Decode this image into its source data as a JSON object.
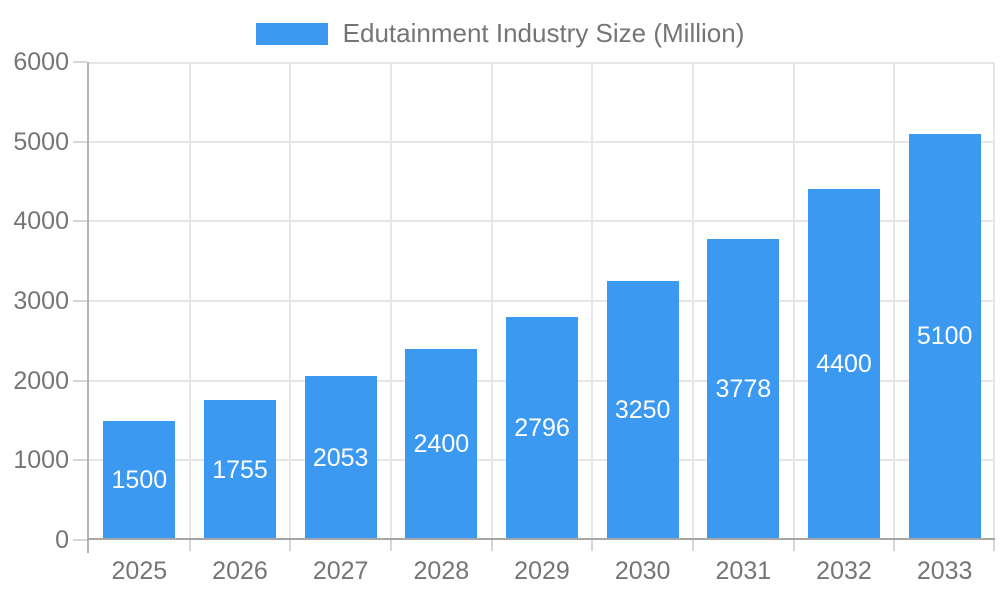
{
  "legend": {
    "label": "Edutainment Industry Size (Million)"
  },
  "chart_data": {
    "type": "bar",
    "title": "Edutainment Industry Size (Million)",
    "categories": [
      "2025",
      "2026",
      "2027",
      "2028",
      "2029",
      "2030",
      "2031",
      "2032",
      "2033"
    ],
    "values": [
      1500,
      1755,
      2053,
      2400,
      2796,
      3250,
      3778,
      4400,
      5100
    ],
    "series": [
      {
        "name": "Edutainment Industry Size (Million)",
        "values": [
          1500,
          1755,
          2053,
          2400,
          2796,
          3250,
          3778,
          4400,
          5100
        ]
      }
    ],
    "xlabel": "",
    "ylabel": "",
    "ylim": [
      0,
      6000
    ],
    "yticks": [
      0,
      1000,
      2000,
      3000,
      4000,
      5000,
      6000
    ],
    "grid": true,
    "legend_position": "top-center",
    "value_labels_position": "inside-center",
    "colors": {
      "bar": "#3b99f1",
      "value_label_text": "#ffffff",
      "axis_text": "#757575",
      "gridline": "#e6e6e6",
      "axis_line": "#b3b3b3",
      "baseline": "#a6a6a6",
      "tick": "#d6d6d6",
      "background": "#ffffff"
    }
  }
}
